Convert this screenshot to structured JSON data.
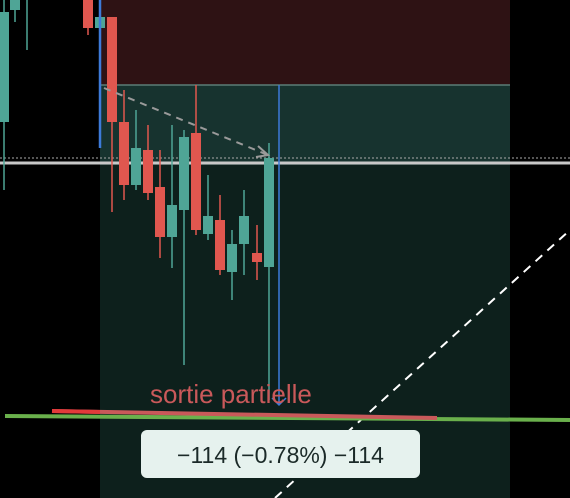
{
  "annotation": "sortie partielle",
  "position_label": "−114 (−0.78%) −114"
}
